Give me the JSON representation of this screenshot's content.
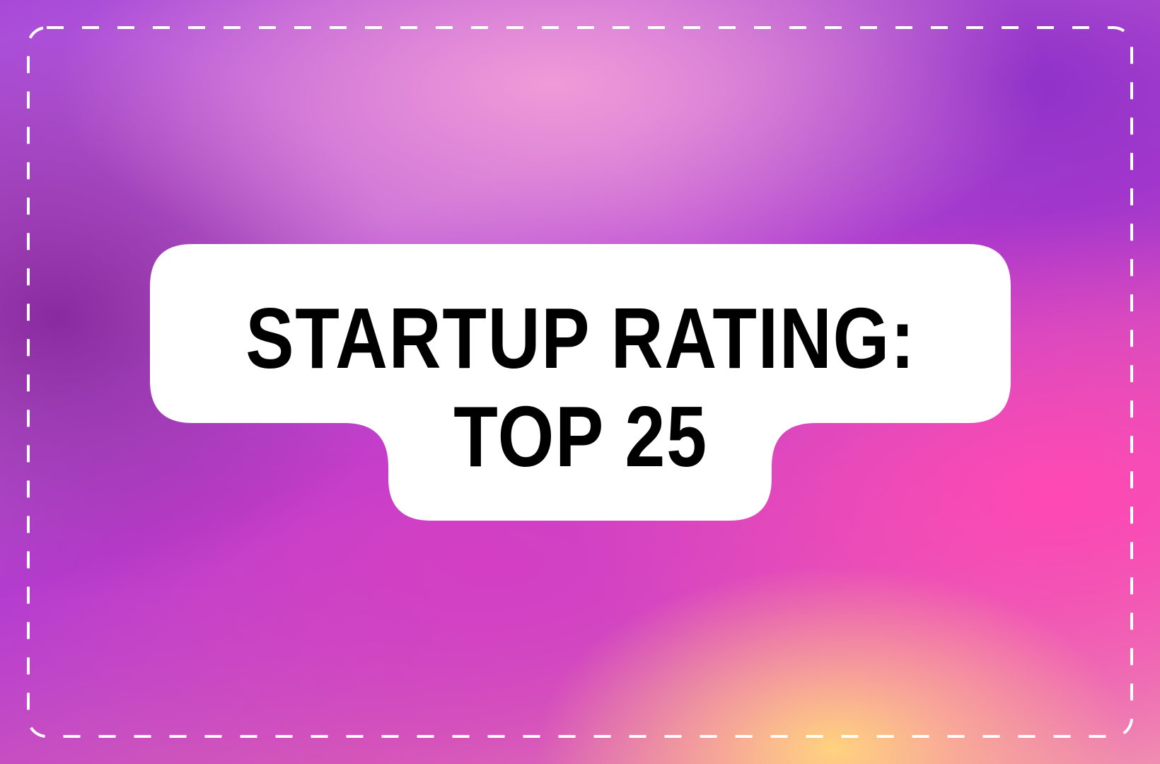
{
  "title": {
    "line1": "STARTUP RATING:",
    "line2": "TOP 25"
  },
  "colors": {
    "card": "#ffffff",
    "text": "#000000",
    "border": "#ffffff"
  }
}
